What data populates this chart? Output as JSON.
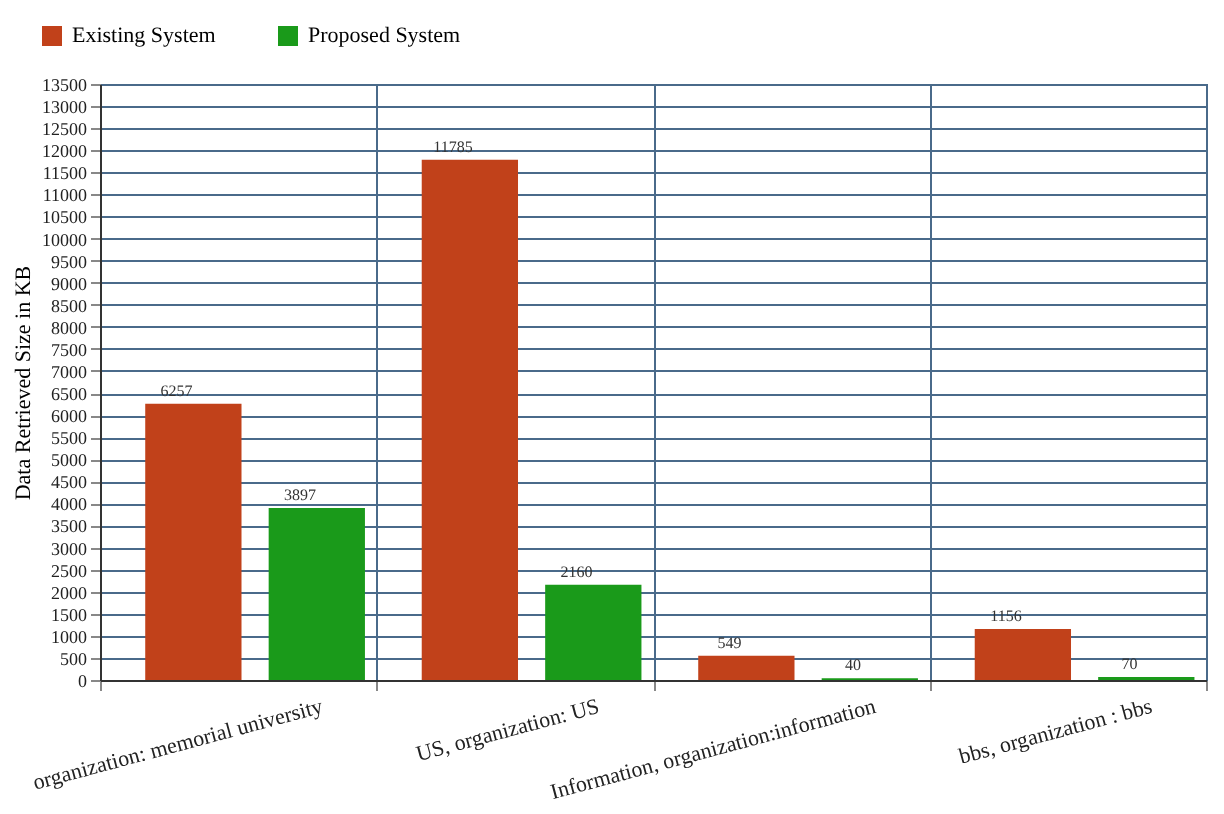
{
  "chart_data": {
    "type": "bar",
    "ylabel": "Data Retrieved Size in KB",
    "categories": [
      "organization: memorial university",
      "US, organization: US",
      "Information, organization:information",
      "bbs, organization : bbs"
    ],
    "series": [
      {
        "name": "Existing System",
        "color": "#c1411a",
        "values": [
          6257,
          11785,
          549,
          1156
        ]
      },
      {
        "name": "Proposed System",
        "color": "#1a9a1a",
        "values": [
          3897,
          2160,
          40,
          70
        ]
      }
    ],
    "ylim": [
      0,
      13500
    ],
    "yticks": [
      0,
      500,
      1000,
      1500,
      2000,
      2500,
      3000,
      3500,
      4000,
      4500,
      5000,
      5500,
      6000,
      6500,
      7000,
      7500,
      8000,
      8500,
      9000,
      9500,
      10000,
      10500,
      11000,
      11500,
      12000,
      12500,
      13000,
      13500
    ],
    "grid": true,
    "legend": "top left",
    "data_labels": true
  }
}
